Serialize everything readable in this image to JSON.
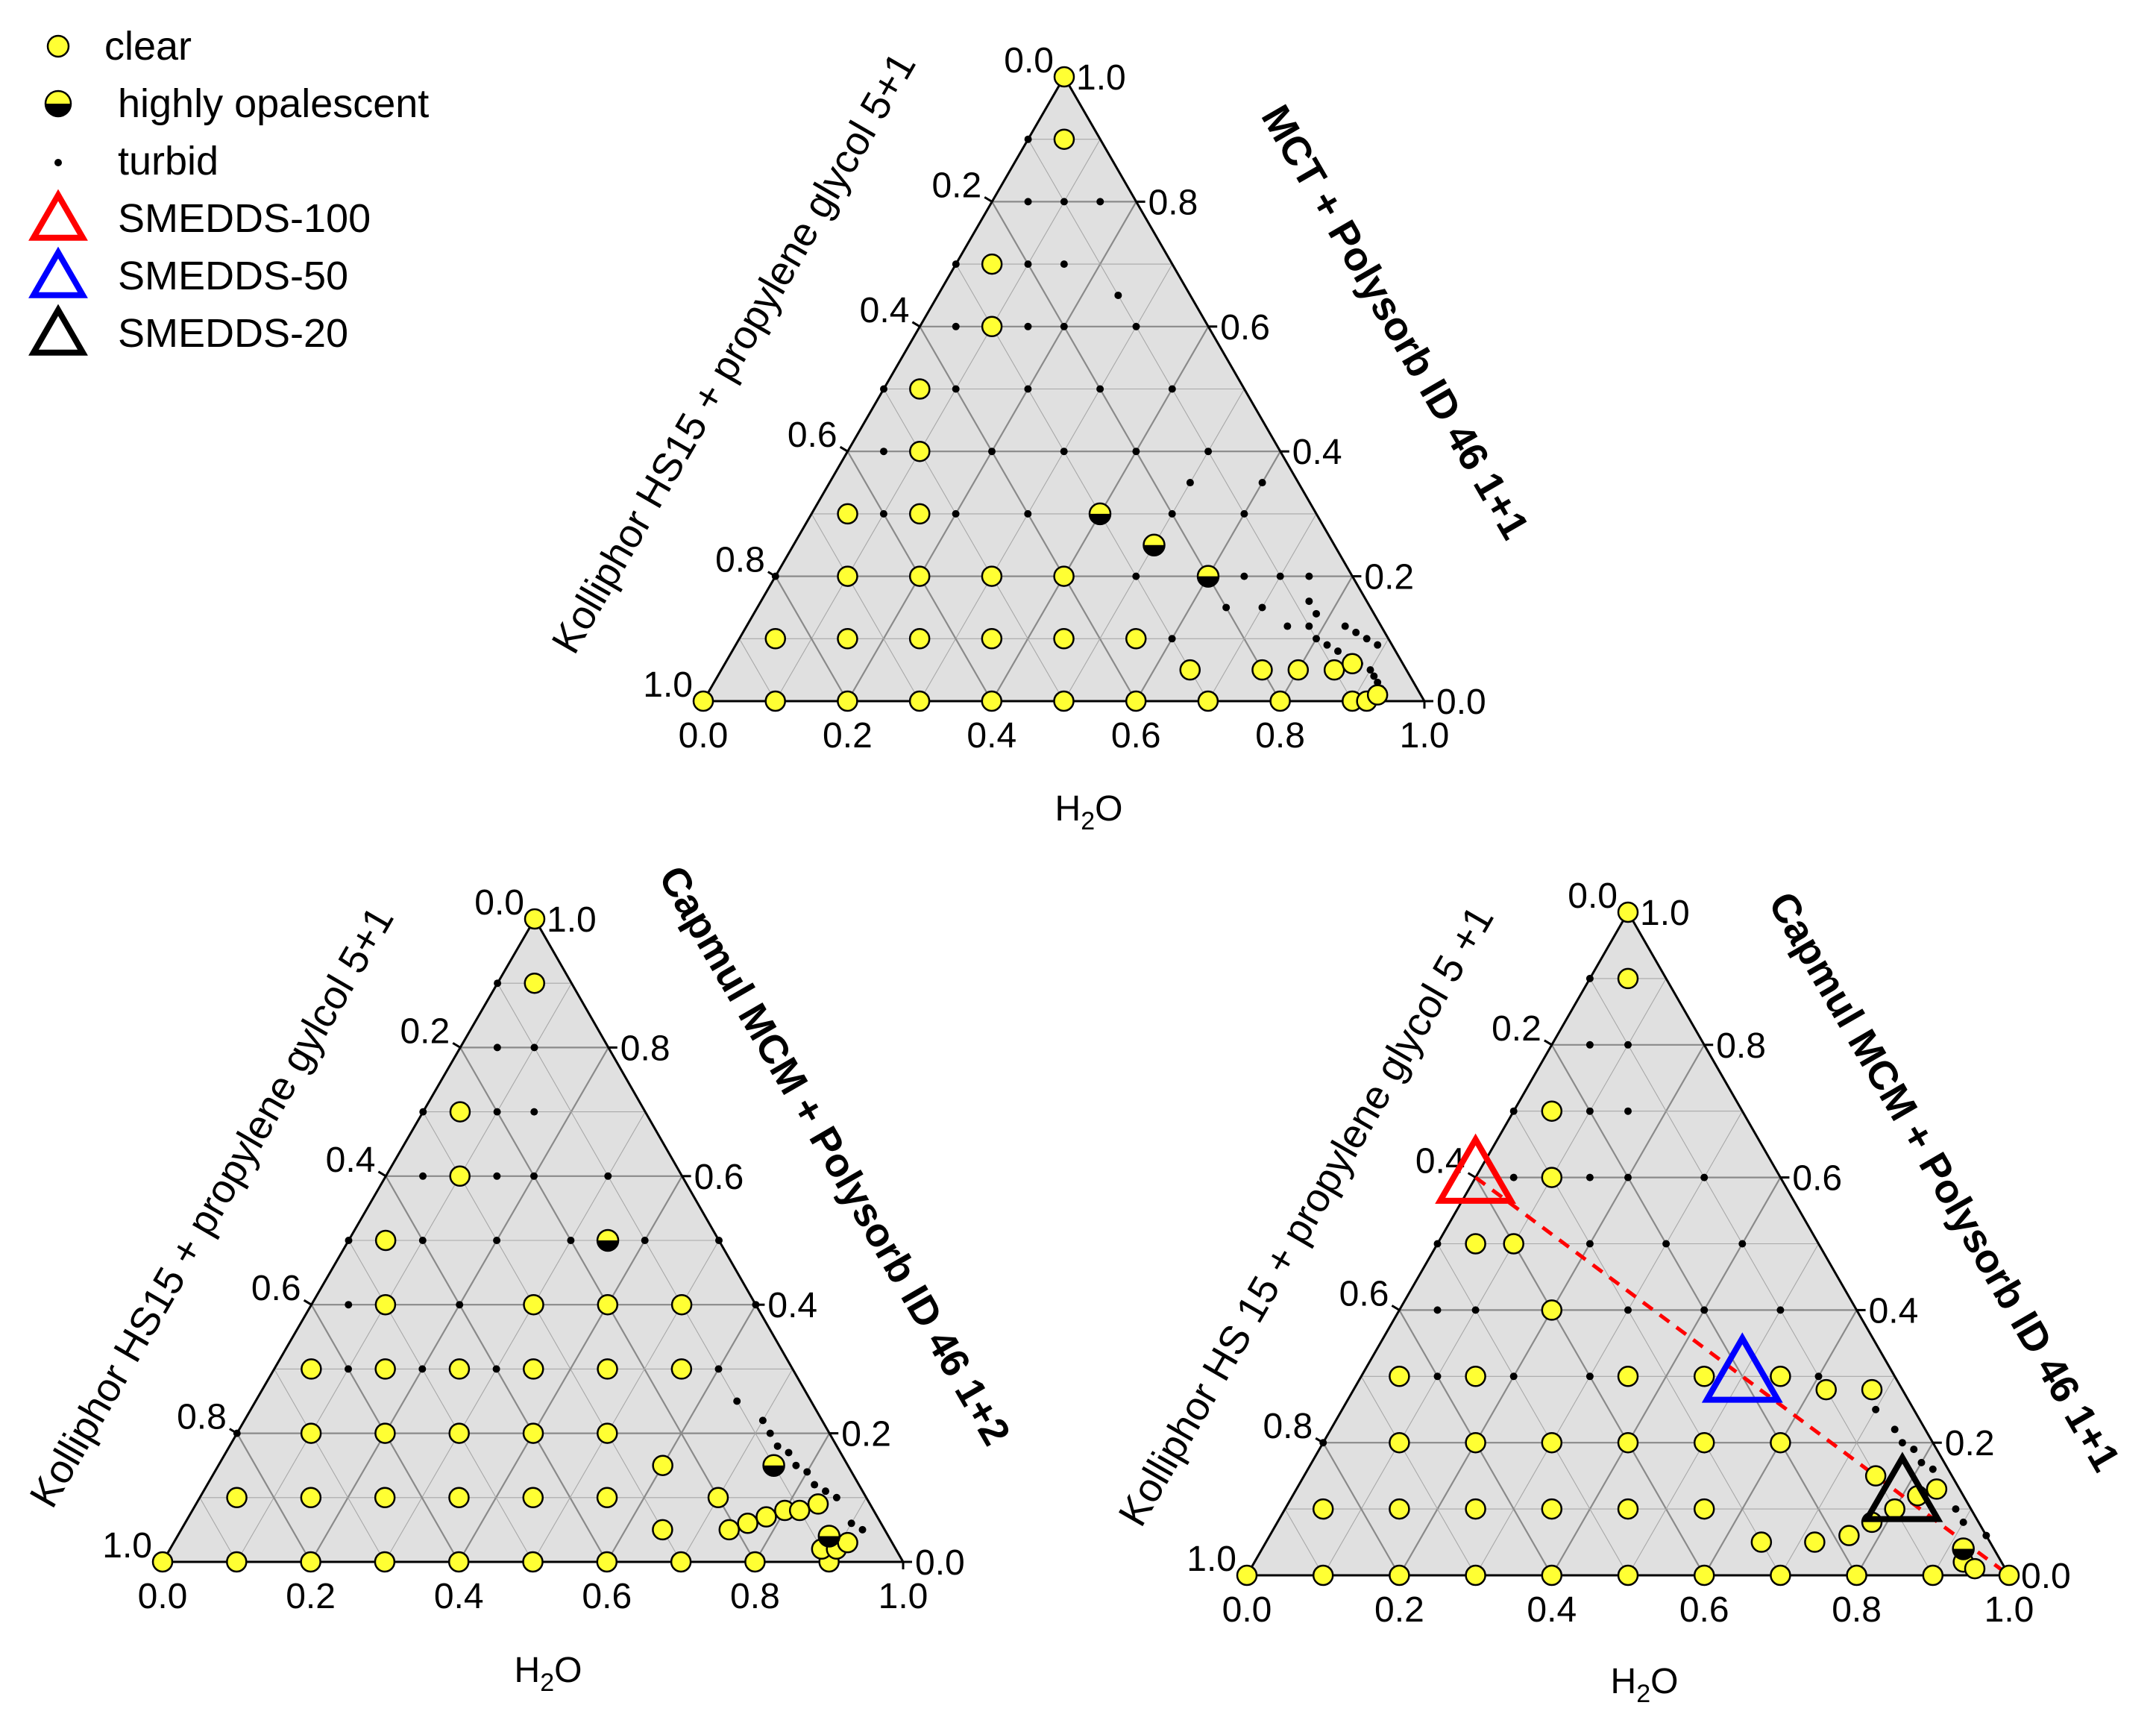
{
  "legend": [
    {
      "key": "clear",
      "label": "clear",
      "marker": "circle-yellow"
    },
    {
      "key": "opal",
      "label": "highly opalescent",
      "marker": "half-filled-circle"
    },
    {
      "key": "turbid",
      "label": "turbid",
      "marker": "small-dot"
    },
    {
      "key": "s100",
      "label": "SMEDDS-100",
      "marker": "triangle",
      "color": "#ff0000"
    },
    {
      "key": "s50",
      "label": "SMEDDS-50",
      "marker": "triangle",
      "color": "#0000ff"
    },
    {
      "key": "s20",
      "label": "SMEDDS-20",
      "marker": "triangle",
      "color": "#000000"
    }
  ],
  "colors": {
    "clear_fill": "#ffff33",
    "plot_fill": "#e0e0e0",
    "grid": "#a8a8a8",
    "dashed_line": "#ff0000"
  },
  "chart_data": [
    {
      "type": "scatter",
      "subtype": "ternary",
      "id": "top",
      "bottom_axis_label": "H2O",
      "left_axis_label": "Kolliphor HS15 + propylene glycol 5+1",
      "right_axis_label": "MCT + Polysorb ID 46  1+1",
      "bottom_ticks": [
        "0.0",
        "0.2",
        "0.4",
        "0.6",
        "0.8",
        "1.0"
      ],
      "left_ticks": [
        "0.0",
        "0.2",
        "0.4",
        "0.6",
        "0.8",
        "1.0"
      ],
      "right_ticks": [
        "0.0",
        "0.2",
        "0.4",
        "0.6",
        "0.8",
        "1.0"
      ],
      "clear": [
        [
          0,
          0
        ],
        [
          0.1,
          0
        ],
        [
          0.2,
          0
        ],
        [
          0.3,
          0
        ],
        [
          0.4,
          0
        ],
        [
          0.5,
          0
        ],
        [
          0.6,
          0
        ],
        [
          0.7,
          0
        ],
        [
          0.8,
          0
        ],
        [
          0.9,
          0
        ],
        [
          0.92,
          0
        ],
        [
          0.93,
          0.01
        ],
        [
          0.05,
          0.1
        ],
        [
          0.15,
          0.1
        ],
        [
          0.25,
          0.1
        ],
        [
          0.35,
          0.1
        ],
        [
          0.45,
          0.1
        ],
        [
          0.55,
          0.1
        ],
        [
          0.65,
          0.05
        ],
        [
          0.75,
          0.05
        ],
        [
          0.8,
          0.05
        ],
        [
          0.85,
          0.05
        ],
        [
          0.87,
          0.06
        ],
        [
          0.1,
          0.2
        ],
        [
          0.2,
          0.2
        ],
        [
          0.3,
          0.2
        ],
        [
          0.4,
          0.2
        ],
        [
          0.05,
          0.3
        ],
        [
          0.15,
          0.3
        ],
        [
          0.1,
          0.4
        ],
        [
          0.05,
          0.5
        ],
        [
          0.1,
          0.6
        ],
        [
          0.05,
          0.7
        ],
        [
          0.05,
          0.9
        ],
        [
          0,
          1
        ]
      ],
      "opalescent": [
        [
          0.4,
          0.3
        ],
        [
          0.5,
          0.25
        ],
        [
          0.6,
          0.2
        ]
      ],
      "turbid": [
        [
          0.05,
          0.8
        ],
        [
          0,
          0.7
        ],
        [
          0.1,
          0.7
        ],
        [
          0.05,
          0.6
        ],
        [
          0.15,
          0.6
        ],
        [
          0.2,
          0.5
        ],
        [
          0,
          0.5
        ],
        [
          0.1,
          0.5
        ],
        [
          0.3,
          0.5
        ],
        [
          0.05,
          0.4
        ],
        [
          0.2,
          0.4
        ],
        [
          0.3,
          0.4
        ],
        [
          0.4,
          0.4
        ],
        [
          0.5,
          0.4
        ],
        [
          0.1,
          0.3
        ],
        [
          0.2,
          0.3
        ],
        [
          0.3,
          0.3
        ],
        [
          0.5,
          0.3
        ],
        [
          0.6,
          0.3
        ],
        [
          0,
          0.2
        ],
        [
          0.5,
          0.2
        ],
        [
          0.6,
          0.1
        ],
        [
          0.65,
          0.15
        ],
        [
          0.65,
          0.2
        ],
        [
          0.7,
          0.15
        ],
        [
          0.75,
          0.12
        ],
        [
          0.78,
          0.12
        ],
        [
          0.8,
          0.1
        ],
        [
          0.82,
          0.09
        ],
        [
          0.84,
          0.08
        ],
        [
          0.86,
          0.07
        ],
        [
          0.88,
          0.06
        ],
        [
          0.9,
          0.05
        ],
        [
          0.91,
          0.04
        ],
        [
          0.92,
          0.03
        ],
        [
          0.93,
          0.02
        ],
        [
          0.4,
          0.5
        ],
        [
          0.3,
          0.6
        ],
        [
          0.2,
          0.6
        ],
        [
          0.25,
          0.65
        ],
        [
          0.5,
          0.35
        ],
        [
          0.6,
          0.35
        ],
        [
          0.7,
          0.2
        ],
        [
          0.74,
          0.2
        ],
        [
          0.76,
          0.16
        ],
        [
          0.78,
          0.14
        ],
        [
          0.83,
          0.12
        ],
        [
          0.85,
          0.11
        ],
        [
          0.87,
          0.1
        ],
        [
          0.89,
          0.09
        ],
        [
          0.1,
          0.8
        ],
        [
          0,
          0.9
        ],
        [
          0.15,
          0.8
        ],
        [
          0.15,
          0.7
        ]
      ],
      "smedds": []
    },
    {
      "type": "scatter",
      "subtype": "ternary",
      "id": "bottom-left",
      "bottom_axis_label": "H2O",
      "left_axis_label": "Kolliphor HS15 + propylene gylcol 5+1",
      "right_axis_label": "Capmul MCM + Polysorb ID 46 1+2",
      "bottom_ticks": [
        "0.0",
        "0.2",
        "0.4",
        "0.6",
        "0.8",
        "1.0"
      ],
      "left_ticks": [
        "0.0",
        "0.2",
        "0.4",
        "0.6",
        "0.8",
        "1.0"
      ],
      "right_ticks": [
        "0.0",
        "0.2",
        "0.4",
        "0.6",
        "0.8",
        "1.0"
      ],
      "clear": [
        [
          0,
          0
        ],
        [
          0.1,
          0
        ],
        [
          0.2,
          0
        ],
        [
          0.3,
          0
        ],
        [
          0.4,
          0
        ],
        [
          0.5,
          0
        ],
        [
          0.6,
          0
        ],
        [
          0.7,
          0
        ],
        [
          0.8,
          0
        ],
        [
          0.9,
          0
        ],
        [
          0.88,
          0.02
        ],
        [
          0.9,
          0.02
        ],
        [
          0.91,
          0.03
        ],
        [
          0.05,
          0.1
        ],
        [
          0.15,
          0.1
        ],
        [
          0.25,
          0.1
        ],
        [
          0.35,
          0.1
        ],
        [
          0.45,
          0.1
        ],
        [
          0.55,
          0.1
        ],
        [
          0.65,
          0.05
        ],
        [
          0.74,
          0.05
        ],
        [
          0.76,
          0.06
        ],
        [
          0.78,
          0.07
        ],
        [
          0.8,
          0.08
        ],
        [
          0.82,
          0.08
        ],
        [
          0.84,
          0.09
        ],
        [
          0.1,
          0.2
        ],
        [
          0.2,
          0.2
        ],
        [
          0.3,
          0.2
        ],
        [
          0.4,
          0.2
        ],
        [
          0.5,
          0.2
        ],
        [
          0.6,
          0.15
        ],
        [
          0.7,
          0.1
        ],
        [
          0.15,
          0.3
        ],
        [
          0.25,
          0.3
        ],
        [
          0.35,
          0.3
        ],
        [
          0.45,
          0.3
        ],
        [
          0.55,
          0.3
        ],
        [
          0.3,
          0.4
        ],
        [
          0.4,
          0.4
        ],
        [
          0.5,
          0.4
        ],
        [
          0.05,
          0.3
        ],
        [
          0.1,
          0.4
        ],
        [
          0.05,
          0.5
        ],
        [
          0.1,
          0.6
        ],
        [
          0.05,
          0.7
        ],
        [
          0.05,
          0.9
        ],
        [
          0,
          1
        ]
      ],
      "opalescent": [
        [
          0.35,
          0.5
        ],
        [
          0.75,
          0.15
        ],
        [
          0.88,
          0.04
        ]
      ],
      "turbid": [
        [
          0.05,
          0.8
        ],
        [
          0.1,
          0.8
        ],
        [
          0,
          0.7
        ],
        [
          0.1,
          0.7
        ],
        [
          0.15,
          0.7
        ],
        [
          0.05,
          0.6
        ],
        [
          0.15,
          0.6
        ],
        [
          0.2,
          0.6
        ],
        [
          0,
          0.5
        ],
        [
          0.1,
          0.5
        ],
        [
          0.2,
          0.5
        ],
        [
          0.3,
          0.5
        ],
        [
          0.05,
          0.4
        ],
        [
          0.2,
          0.4
        ],
        [
          0.6,
          0.4
        ],
        [
          0.1,
          0.3
        ],
        [
          0.2,
          0.3
        ],
        [
          0.3,
          0.3
        ],
        [
          0.6,
          0.3
        ],
        [
          0,
          0.2
        ],
        [
          0.65,
          0.25
        ],
        [
          0.7,
          0.22
        ],
        [
          0.72,
          0.2
        ],
        [
          0.74,
          0.18
        ],
        [
          0.76,
          0.17
        ],
        [
          0.78,
          0.15
        ],
        [
          0.8,
          0.14
        ],
        [
          0.82,
          0.12
        ],
        [
          0.84,
          0.11
        ],
        [
          0.86,
          0.1
        ],
        [
          0.9,
          0.06
        ],
        [
          0.92,
          0.05
        ],
        [
          0.5,
          0.5
        ],
        [
          0.4,
          0.5
        ],
        [
          0.3,
          0.6
        ],
        [
          0,
          0.9
        ]
      ],
      "smedds": []
    },
    {
      "type": "scatter",
      "subtype": "ternary",
      "id": "bottom-right",
      "bottom_axis_label": "H2O",
      "left_axis_label": "Kolliphor HS 15 + propylene glycol 5 +1",
      "right_axis_label": "Capmul MCM + Polysorb ID 46  1+1",
      "bottom_ticks": [
        "0.0",
        "0.2",
        "0.4",
        "0.6",
        "0.8",
        "1.0"
      ],
      "left_ticks": [
        "0.0",
        "0.2",
        "0.4",
        "0.6",
        "0.8",
        "1.0"
      ],
      "right_ticks": [
        "0.0",
        "0.2",
        "0.4",
        "0.6",
        "0.8",
        "1.0"
      ],
      "clear": [
        [
          0,
          0
        ],
        [
          0.1,
          0
        ],
        [
          0.2,
          0
        ],
        [
          0.3,
          0
        ],
        [
          0.4,
          0
        ],
        [
          0.5,
          0
        ],
        [
          0.6,
          0
        ],
        [
          0.7,
          0
        ],
        [
          0.8,
          0
        ],
        [
          0.9,
          0
        ],
        [
          1,
          0
        ],
        [
          0.93,
          0.02
        ],
        [
          0.95,
          0.01
        ],
        [
          0.05,
          0.1
        ],
        [
          0.15,
          0.1
        ],
        [
          0.25,
          0.1
        ],
        [
          0.35,
          0.1
        ],
        [
          0.45,
          0.1
        ],
        [
          0.55,
          0.1
        ],
        [
          0.65,
          0.05
        ],
        [
          0.72,
          0.05
        ],
        [
          0.76,
          0.06
        ],
        [
          0.78,
          0.08
        ],
        [
          0.8,
          0.1
        ],
        [
          0.82,
          0.12
        ],
        [
          0.84,
          0.13
        ],
        [
          0.1,
          0.2
        ],
        [
          0.2,
          0.2
        ],
        [
          0.3,
          0.2
        ],
        [
          0.4,
          0.2
        ],
        [
          0.5,
          0.2
        ],
        [
          0.6,
          0.2
        ],
        [
          0.75,
          0.15
        ],
        [
          0.15,
          0.3
        ],
        [
          0.35,
          0.3
        ],
        [
          0.45,
          0.3
        ],
        [
          0.55,
          0.3
        ],
        [
          0.62,
          0.28
        ],
        [
          0.68,
          0.28
        ],
        [
          0.05,
          0.3
        ],
        [
          0.1,
          0.6
        ],
        [
          0.05,
          0.5
        ],
        [
          0.05,
          0.7
        ],
        [
          0.05,
          0.9
        ],
        [
          0,
          1
        ],
        [
          0.2,
          0.4
        ],
        [
          0.1,
          0.5
        ]
      ],
      "opalescent": [
        [
          0.92,
          0.04
        ]
      ],
      "turbid": [
        [
          0.05,
          0.8
        ],
        [
          0.1,
          0.8
        ],
        [
          0,
          0.7
        ],
        [
          0.1,
          0.7
        ],
        [
          0.15,
          0.7
        ],
        [
          0.05,
          0.6
        ],
        [
          0.15,
          0.6
        ],
        [
          0.2,
          0.6
        ],
        [
          0,
          0.5
        ],
        [
          0.2,
          0.5
        ],
        [
          0.3,
          0.5
        ],
        [
          0.05,
          0.4
        ],
        [
          0.3,
          0.4
        ],
        [
          0.4,
          0.4
        ],
        [
          0.5,
          0.4
        ],
        [
          0.1,
          0.3
        ],
        [
          0.2,
          0.3
        ],
        [
          0.3,
          0.3
        ],
        [
          0.6,
          0.3
        ],
        [
          0,
          0.2
        ],
        [
          0.7,
          0.25
        ],
        [
          0.74,
          0.22
        ],
        [
          0.76,
          0.2
        ],
        [
          0.78,
          0.19
        ],
        [
          0.8,
          0.17
        ],
        [
          0.82,
          0.16
        ],
        [
          0.88,
          0.1
        ],
        [
          0.9,
          0.08
        ],
        [
          0.94,
          0.06
        ],
        [
          0.4,
          0.5
        ],
        [
          0.3,
          0.6
        ],
        [
          0,
          0.9
        ],
        [
          0.1,
          0.4
        ]
      ],
      "smedds": [
        {
          "key": "s100",
          "h2o": 0.0,
          "left": 0.6
        },
        {
          "key": "s50",
          "h2o": 0.5,
          "left": 0.3
        },
        {
          "key": "s20",
          "h2o": 0.8,
          "left": 0.12
        }
      ],
      "dashed_line": {
        "from": {
          "h2o": 0.0,
          "left": 0.6
        },
        "to": {
          "h2o": 1.0,
          "left": 0.0
        }
      }
    }
  ]
}
